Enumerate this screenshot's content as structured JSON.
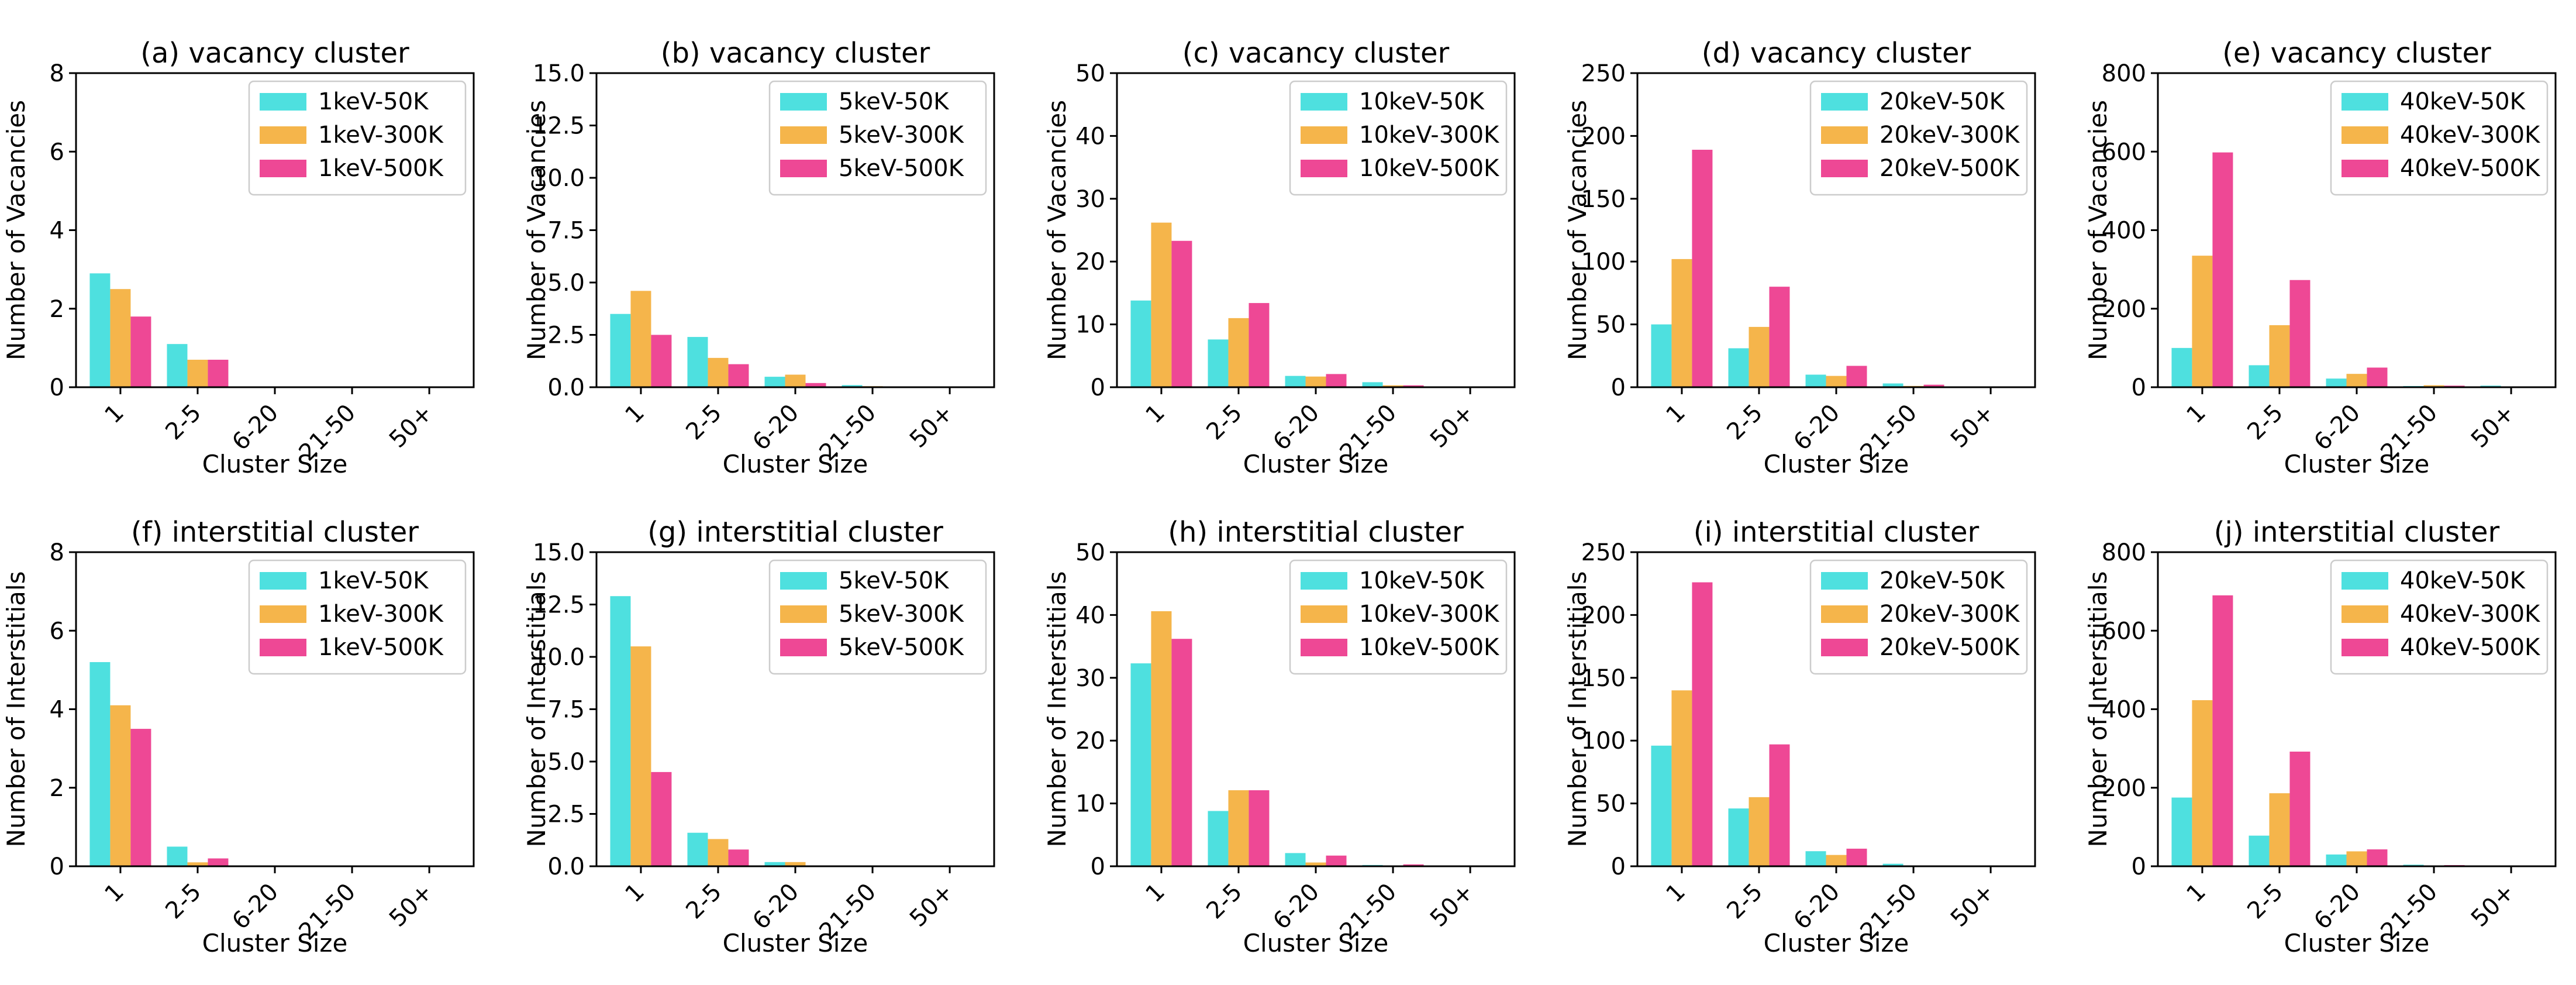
{
  "colors": {
    "t50K": "#4ee0df",
    "t300K": "#f5b54b",
    "t500K": "#ee4895"
  },
  "chart_data": [
    {
      "type": "bar",
      "title": "(a) vacancy cluster",
      "xlabel": "Cluster Size",
      "ylabel": "Number of Vacancies",
      "categories": [
        "1",
        "2-5",
        "6-20",
        "21-50",
        "50+"
      ],
      "ylim": [
        0,
        8
      ],
      "yticks": [
        "0",
        "2",
        "4",
        "6",
        "8"
      ],
      "legend_position": "upper right",
      "series": [
        {
          "name": "1keV-50K",
          "values": [
            2.9,
            1.1,
            0,
            0,
            0
          ]
        },
        {
          "name": "1keV-300K",
          "values": [
            2.5,
            0.7,
            0,
            0,
            0
          ]
        },
        {
          "name": "1keV-500K",
          "values": [
            1.8,
            0.7,
            0,
            0,
            0
          ]
        }
      ]
    },
    {
      "type": "bar",
      "title": "(b) vacancy cluster",
      "xlabel": "Cluster Size",
      "ylabel": "Number of Vacancies",
      "categories": [
        "1",
        "2-5",
        "6-20",
        "21-50",
        "50+"
      ],
      "ylim": [
        0,
        15
      ],
      "yticks": [
        "0.0",
        "2.5",
        "5.0",
        "7.5",
        "10.0",
        "12.5",
        "15.0"
      ],
      "legend_position": "upper right",
      "series": [
        {
          "name": "5keV-50K",
          "values": [
            3.5,
            2.4,
            0.5,
            0.1,
            0
          ]
        },
        {
          "name": "5keV-300K",
          "values": [
            4.6,
            1.4,
            0.6,
            0.05,
            0
          ]
        },
        {
          "name": "5keV-500K",
          "values": [
            2.5,
            1.1,
            0.2,
            0,
            0
          ]
        }
      ]
    },
    {
      "type": "bar",
      "title": "(c) vacancy cluster",
      "xlabel": "Cluster Size",
      "ylabel": "Number of Vacancies",
      "categories": [
        "1",
        "2-5",
        "6-20",
        "21-50",
        "50+"
      ],
      "ylim": [
        0,
        50
      ],
      "yticks": [
        "0",
        "10",
        "20",
        "30",
        "40",
        "50"
      ],
      "legend_position": "upper right",
      "series": [
        {
          "name": "10keV-50K",
          "values": [
            13.8,
            7.6,
            1.8,
            0.8,
            0
          ]
        },
        {
          "name": "10keV-300K",
          "values": [
            26.2,
            11,
            1.7,
            0.3,
            0
          ]
        },
        {
          "name": "10keV-500K",
          "values": [
            23.3,
            13.4,
            2.1,
            0.3,
            0
          ]
        }
      ]
    },
    {
      "type": "bar",
      "title": "(d) vacancy cluster",
      "xlabel": "Cluster Size",
      "ylabel": "Number of Vacancies",
      "categories": [
        "1",
        "2-5",
        "6-20",
        "21-50",
        "50+"
      ],
      "ylim": [
        0,
        250
      ],
      "yticks": [
        "0",
        "50",
        "100",
        "150",
        "200",
        "250"
      ],
      "legend_position": "upper right",
      "series": [
        {
          "name": "20keV-50K",
          "values": [
            50,
            31,
            10,
            3,
            0
          ]
        },
        {
          "name": "20keV-300K",
          "values": [
            102,
            48,
            9,
            1,
            0
          ]
        },
        {
          "name": "20keV-500K",
          "values": [
            189,
            80,
            17,
            2,
            0
          ]
        }
      ]
    },
    {
      "type": "bar",
      "title": "(e) vacancy cluster",
      "xlabel": "Cluster Size",
      "ylabel": "Number of Vacancies",
      "categories": [
        "1",
        "2-5",
        "6-20",
        "21-50",
        "50+"
      ],
      "ylim": [
        0,
        800
      ],
      "yticks": [
        "0",
        "200",
        "400",
        "600",
        "800"
      ],
      "legend_position": "upper right",
      "series": [
        {
          "name": "40keV-50K",
          "values": [
            100,
            56,
            22,
            3,
            4
          ]
        },
        {
          "name": "40keV-300K",
          "values": [
            335,
            158,
            34,
            5,
            0
          ]
        },
        {
          "name": "40keV-500K",
          "values": [
            598,
            273,
            50,
            4,
            0
          ]
        }
      ]
    },
    {
      "type": "bar",
      "title": "(f) interstitial cluster",
      "xlabel": "Cluster Size",
      "ylabel": "Number of Interstitials",
      "categories": [
        "1",
        "2-5",
        "6-20",
        "21-50",
        "50+"
      ],
      "ylim": [
        0,
        8
      ],
      "yticks": [
        "0",
        "2",
        "4",
        "6",
        "8"
      ],
      "legend_position": "upper right",
      "series": [
        {
          "name": "1keV-50K",
          "values": [
            5.2,
            0.5,
            0,
            0,
            0
          ]
        },
        {
          "name": "1keV-300K",
          "values": [
            4.1,
            0.1,
            0,
            0,
            0
          ]
        },
        {
          "name": "1keV-500K",
          "values": [
            3.5,
            0.2,
            0,
            0,
            0
          ]
        }
      ]
    },
    {
      "type": "bar",
      "title": "(g) interstitial cluster",
      "xlabel": "Cluster Size",
      "ylabel": "Number of Interstitials",
      "categories": [
        "1",
        "2-5",
        "6-20",
        "21-50",
        "50+"
      ],
      "ylim": [
        0,
        15
      ],
      "yticks": [
        "0.0",
        "2.5",
        "5.0",
        "7.5",
        "10.0",
        "12.5",
        "15.0"
      ],
      "legend_position": "upper right",
      "series": [
        {
          "name": "5keV-50K",
          "values": [
            12.9,
            1.6,
            0.2,
            0,
            0
          ]
        },
        {
          "name": "5keV-300K",
          "values": [
            10.5,
            1.3,
            0.2,
            0,
            0
          ]
        },
        {
          "name": "5keV-500K",
          "values": [
            4.5,
            0.8,
            0,
            0,
            0
          ]
        }
      ]
    },
    {
      "type": "bar",
      "title": "(h) interstitial cluster",
      "xlabel": "Cluster Size",
      "ylabel": "Number of Interstitials",
      "categories": [
        "1",
        "2-5",
        "6-20",
        "21-50",
        "50+"
      ],
      "ylim": [
        0,
        50
      ],
      "yticks": [
        "0",
        "10",
        "20",
        "30",
        "40",
        "50"
      ],
      "legend_position": "upper right",
      "series": [
        {
          "name": "10keV-50K",
          "values": [
            32.3,
            8.8,
            2.1,
            0.2,
            0
          ]
        },
        {
          "name": "10keV-300K",
          "values": [
            40.6,
            12.1,
            0.6,
            0,
            0
          ]
        },
        {
          "name": "10keV-500K",
          "values": [
            36.2,
            12.1,
            1.7,
            0.3,
            0
          ]
        }
      ]
    },
    {
      "type": "bar",
      "title": "(i) interstitial cluster",
      "xlabel": "Cluster Size",
      "ylabel": "Number of Interstitials",
      "categories": [
        "1",
        "2-5",
        "6-20",
        "21-50",
        "50+"
      ],
      "ylim": [
        0,
        250
      ],
      "yticks": [
        "0",
        "50",
        "100",
        "150",
        "200",
        "250"
      ],
      "legend_position": "upper right",
      "series": [
        {
          "name": "20keV-50K",
          "values": [
            96,
            46,
            12,
            2,
            0
          ]
        },
        {
          "name": "20keV-300K",
          "values": [
            140,
            55,
            9,
            0,
            0
          ]
        },
        {
          "name": "20keV-500K",
          "values": [
            226,
            97,
            14,
            0,
            0
          ]
        }
      ]
    },
    {
      "type": "bar",
      "title": "(j) interstitial cluster",
      "xlabel": "Cluster Size",
      "ylabel": "Number of Interstitials",
      "categories": [
        "1",
        "2-5",
        "6-20",
        "21-50",
        "50+"
      ],
      "ylim": [
        0,
        800
      ],
      "yticks": [
        "0",
        "200",
        "400",
        "600",
        "800"
      ],
      "legend_position": "upper right",
      "series": [
        {
          "name": "40keV-50K",
          "values": [
            175,
            78,
            30,
            4,
            0
          ]
        },
        {
          "name": "40keV-300K",
          "values": [
            423,
            186,
            38,
            2,
            0
          ]
        },
        {
          "name": "40keV-500K",
          "values": [
            690,
            292,
            43,
            3,
            0
          ]
        }
      ]
    }
  ]
}
